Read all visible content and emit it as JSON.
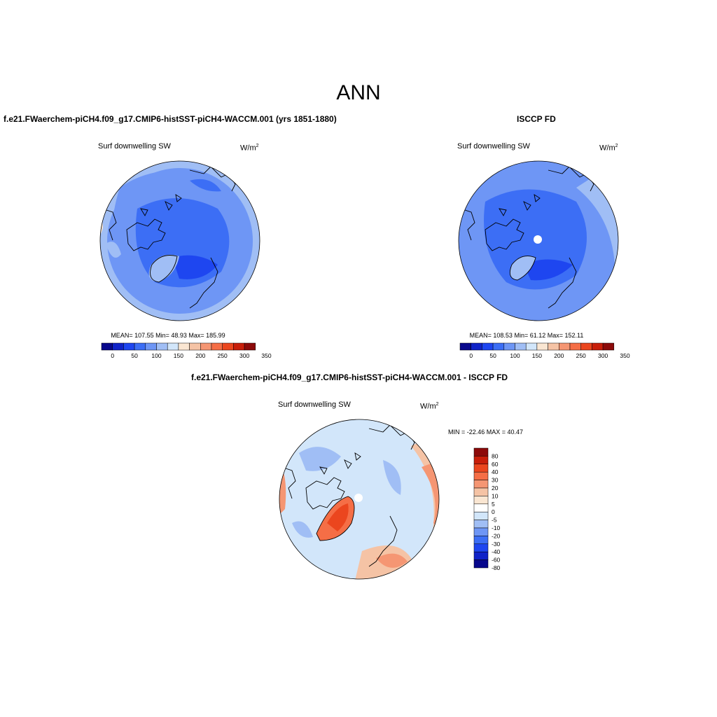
{
  "main_title": "ANN",
  "panels": [
    {
      "title": "f.e21.FWaerchem-piCH4.f09_g17.CMIP6-histSST-piCH4-WACCM.001 (yrs 1851-1880)",
      "left_label": "Surf downwelling SW",
      "units": "W/m",
      "units_sup": "2",
      "stats": "MEAN= 107.55  Min=  48.93  Max= 185.99",
      "mean": 107.55,
      "min": 48.93,
      "max": 185.99
    },
    {
      "title": "ISCCP FD",
      "left_label": "Surf downwelling SW",
      "units": "W/m",
      "units_sup": "2",
      "stats": "MEAN= 108.53  Min=  61.12  Max= 152.11",
      "mean": 108.53,
      "min": 61.12,
      "max": 152.11
    },
    {
      "title": "f.e21.FWaerchem-piCH4.f09_g17.CMIP6-histSST-piCH4-WACCM.001 - ISCCP FD",
      "left_label": "Surf downwelling SW",
      "units": "W/m",
      "units_sup": "2",
      "stats": "MIN = -22.46 MAX =  40.47",
      "min": -22.46,
      "max": 40.47
    }
  ],
  "colorbar_horizontal": {
    "labels": [
      "0",
      "50",
      "100",
      "150",
      "200",
      "250",
      "300",
      "350"
    ],
    "colors": [
      "#08088c",
      "#1023c8",
      "#1e46f0",
      "#3c6ef5",
      "#6e96f5",
      "#a0bef5",
      "#d2e6fa",
      "#fae6d2",
      "#f5c3a5",
      "#f59673",
      "#f56e46",
      "#eb461e",
      "#c81e0a",
      "#8c0a0a"
    ]
  },
  "colorbar_vertical": {
    "labels": [
      "80",
      "60",
      "40",
      "30",
      "20",
      "10",
      "5",
      "0",
      "-5",
      "-10",
      "-20",
      "-30",
      "-40",
      "-60",
      "-80"
    ],
    "colors": [
      "#8c0a0a",
      "#c81e0a",
      "#eb461e",
      "#f56e46",
      "#f59673",
      "#f5c3a5",
      "#fae6d2",
      "#ffffff",
      "#d2e6fa",
      "#a0bef5",
      "#6e96f5",
      "#3c6ef5",
      "#1e46f0",
      "#1023c8",
      "#08088c"
    ]
  }
}
